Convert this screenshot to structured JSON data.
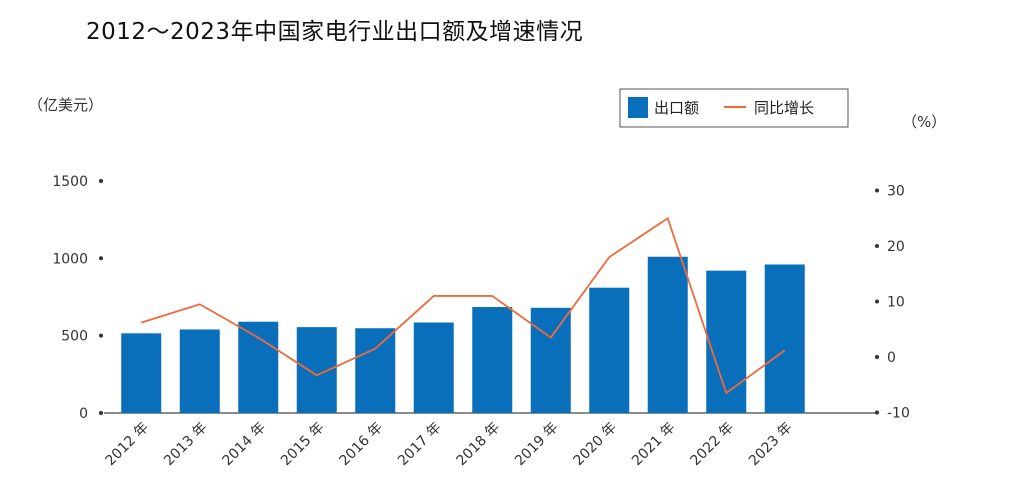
{
  "chart_data": {
    "type": "bar",
    "title": "2012～2023年中国家电行业出口额及增速情况",
    "categories": [
      "2012 年",
      "2013 年",
      "2014 年",
      "2015 年",
      "2016 年",
      "2017 年",
      "2018 年",
      "2019 年",
      "2020 年",
      "2021 年",
      "2022 年",
      "2023 年"
    ],
    "series": [
      {
        "name": "出口额",
        "type": "bar",
        "axis": "left",
        "color": "#0a6fba",
        "values": [
          515,
          540,
          590,
          555,
          548,
          585,
          685,
          680,
          810,
          1010,
          920,
          960
        ]
      },
      {
        "name": "同比增长",
        "type": "line",
        "axis": "right",
        "color": "#f0693a",
        "values": [
          6.2,
          9.5,
          3.5,
          -3.3,
          1.5,
          11.0,
          11.0,
          3.5,
          18.0,
          25.0,
          -6.5,
          1.2
        ]
      }
    ],
    "y_left": {
      "unit_label": "（亿美元）",
      "ylim": [
        0,
        1500
      ],
      "ticks": [
        "0",
        "500",
        "1000",
        "1500"
      ]
    },
    "y_right": {
      "unit_label": "（%）",
      "ylim": [
        -10,
        30
      ],
      "ticks": [
        "-10",
        "0",
        "10",
        "20",
        "30"
      ]
    },
    "legend_placement": "top-right",
    "grid": false
  }
}
